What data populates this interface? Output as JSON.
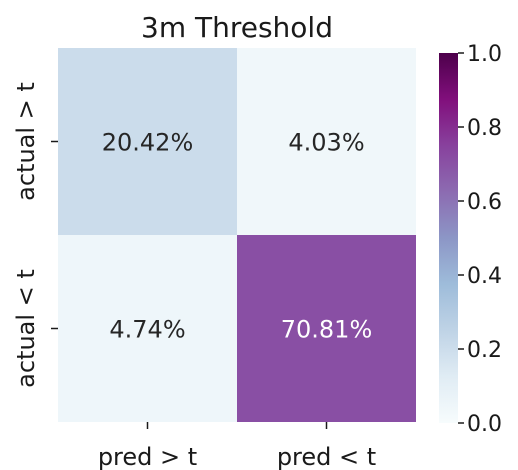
{
  "chart_data": {
    "type": "heatmap",
    "title": "3m Threshold",
    "xlabel": "",
    "ylabel": "",
    "x_categories": [
      "pred > t",
      "pred < t"
    ],
    "y_categories": [
      "actual > t",
      "actual < t"
    ],
    "values": [
      [
        0.2042,
        0.0403
      ],
      [
        0.0474,
        0.7081
      ]
    ],
    "cell_labels": [
      [
        "20.42%",
        "4.03%"
      ],
      [
        "4.74%",
        "70.81%"
      ]
    ],
    "colorbar": {
      "range": [
        0.0,
        1.0
      ],
      "ticks": [
        0.0,
        0.2,
        0.4,
        0.6,
        0.8,
        1.0
      ],
      "tick_labels": [
        "0.0",
        "0.2",
        "0.4",
        "0.6",
        "0.8",
        "1.0"
      ]
    },
    "colormap": [
      "#f7fcfd",
      "#e0ecf4",
      "#bfd3e6",
      "#9ebcda",
      "#8c96c6",
      "#8c6bb1",
      "#88419d",
      "#810f7c",
      "#4d004b"
    ],
    "grid": false
  }
}
